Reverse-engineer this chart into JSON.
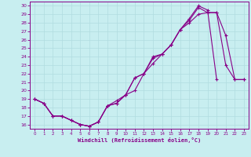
{
  "xlabel": "Windchill (Refroidissement éolien,°C)",
  "bg_color": "#c8eef0",
  "grid_color": "#b0dce0",
  "line_color": "#880088",
  "xlim": [
    -0.5,
    23.5
  ],
  "ylim": [
    15.5,
    30.5
  ],
  "xticks": [
    0,
    1,
    2,
    3,
    4,
    5,
    6,
    7,
    8,
    9,
    10,
    11,
    12,
    13,
    14,
    15,
    16,
    17,
    18,
    19,
    20,
    21,
    22,
    23
  ],
  "yticks": [
    16,
    17,
    18,
    19,
    20,
    21,
    22,
    23,
    24,
    25,
    26,
    27,
    28,
    29,
    30
  ],
  "line1_x": [
    0,
    1,
    2,
    3,
    4,
    5,
    6,
    7,
    8,
    9,
    10,
    11,
    12,
    13,
    14,
    15,
    16,
    17,
    18,
    19,
    20,
    21,
    22,
    23
  ],
  "line1_y": [
    19.0,
    18.5,
    17.0,
    17.0,
    16.5,
    16.0,
    15.8,
    16.3,
    18.2,
    18.5,
    19.5,
    20.0,
    22.0,
    23.2,
    24.3,
    25.4,
    27.2,
    28.0,
    29.0,
    29.2,
    29.2,
    23.0,
    21.3,
    21.3
  ],
  "line2_x": [
    0,
    1,
    2,
    3,
    4,
    5,
    6,
    7,
    8,
    9,
    10,
    11,
    12,
    13,
    14,
    15,
    16,
    17,
    18,
    19,
    20,
    21,
    22,
    23
  ],
  "line2_y": [
    19.0,
    18.5,
    17.0,
    17.0,
    16.5,
    16.0,
    15.8,
    16.3,
    18.2,
    18.5,
    19.5,
    21.5,
    22.0,
    23.8,
    24.3,
    25.4,
    27.2,
    28.3,
    29.8,
    29.2,
    29.2,
    26.5,
    21.3,
    21.3
  ],
  "line3_x": [
    0,
    1,
    2,
    3,
    4,
    5,
    6,
    7,
    8,
    9,
    10,
    11,
    12,
    13,
    14,
    15,
    16,
    17,
    18,
    19,
    20
  ],
  "line3_y": [
    19.0,
    18.5,
    17.0,
    17.0,
    16.5,
    16.0,
    15.8,
    16.3,
    18.2,
    18.8,
    19.5,
    21.5,
    22.0,
    24.0,
    24.3,
    25.4,
    27.2,
    28.5,
    30.0,
    29.5,
    21.3
  ]
}
